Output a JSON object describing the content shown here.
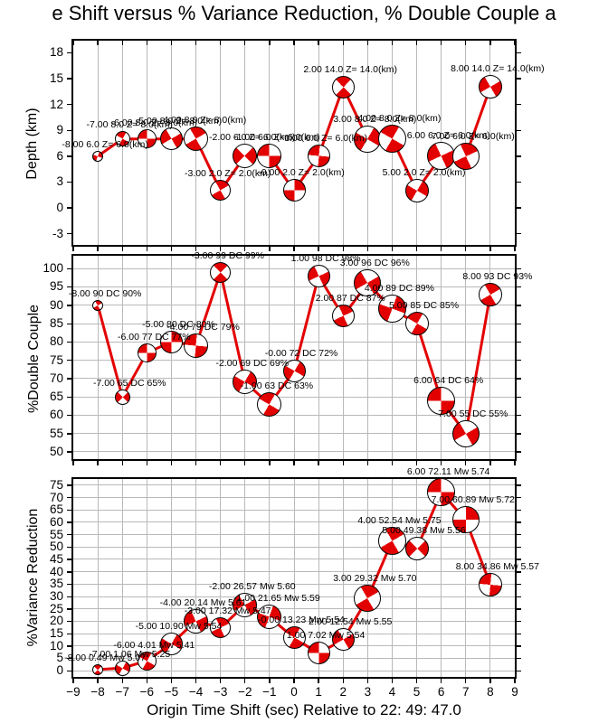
{
  "title": "e Shift versus % Variance Reduction, % Double Couple a",
  "x_axis": {
    "label": "Origin Time Shift (sec) Relative to 22: 49: 47.0",
    "ticks": [
      -9,
      -8,
      -7,
      -6,
      -5,
      -4,
      -3,
      -2,
      -1,
      0,
      1,
      2,
      3,
      4,
      5,
      6,
      7,
      8,
      9
    ]
  },
  "colors": {
    "line": "#e30000",
    "ball_fill": "#e30000",
    "ball_stroke": "#000000",
    "grid": "#b9b9b9",
    "axis": "#000000",
    "background": "#ffffff",
    "text": "#000000"
  },
  "chart_data": {
    "type": "line",
    "x": [
      -8,
      -7,
      -6,
      -5,
      -4,
      -3,
      -2,
      -1,
      0,
      1,
      2,
      3,
      4,
      5,
      6,
      7,
      8
    ],
    "mw": [
      5.07,
      5.25,
      5.41,
      5.54,
      5.61,
      5.47,
      5.6,
      5.59,
      5.54,
      5.54,
      5.55,
      5.7,
      5.75,
      5.56,
      5.74,
      5.72,
      5.57
    ],
    "xlim": [
      -9,
      9
    ],
    "subplots": [
      {
        "id": "depth",
        "ylabel": "Depth (km)",
        "ylim": [
          -4.3,
          19.4
        ],
        "yticks": [
          18,
          15,
          12,
          9,
          6,
          3,
          0,
          -3
        ],
        "horizontal_grid": false,
        "values": [
          6,
          8,
          8,
          8,
          8,
          2,
          6,
          6,
          2,
          6,
          14,
          8,
          8,
          2,
          6,
          6,
          14
        ],
        "point_labels": [
          "-8.00 6.0 Z= 6.0(km)",
          "-7.00 8.0 Z= 8.0(km)",
          "-6.00 8.0 Z= 8.0(km)",
          "-5.00 8.0 Z= 8.0(km)",
          "-4.00 8.0 Z= 8.0(km)",
          "-3.00 2.0 Z= 2.0(km)",
          "-2.00 6.0 Z= 6.0(km)",
          "-1.00 6.0 Z= 6.0(km)",
          "-0.00 2.0 Z= 2.0(km)",
          "1.00 6.0 Z= 6.0(km)",
          "2.00 14.0 Z= 14.0(km)",
          "3.00 8.0 Z= 8.0(km)",
          "4.00 8.0 Z= 8.0(km)",
          "5.00 2.0 Z= 2.0(km)",
          "6.00 6.0 Z= 6.0(km)",
          "7.00 6.0 Z= 6.0(km)",
          "8.00 14.0 Z= 14.0(km)"
        ]
      },
      {
        "id": "double-couple",
        "ylabel": "%Double Couple",
        "ylim": [
          48.0,
          103.5
        ],
        "yticks": [
          100,
          95,
          90,
          85,
          80,
          75,
          70,
          65,
          60,
          55,
          50
        ],
        "horizontal_grid": true,
        "values": [
          90,
          65,
          77,
          80,
          79,
          99,
          69,
          63,
          72,
          98,
          87,
          96,
          89,
          85,
          64,
          55,
          93
        ],
        "point_labels": [
          "-8.00 90 DC 90%",
          "-7.00 65 DC 65%",
          "-6.00 77 DC 77%",
          "-5.00 80 DC 80%",
          "-4.00 79 DC 79%",
          "-3.00 99 DC 99%",
          "-2.00 69 DC 69%",
          "-1.00 63 DC 63%",
          "-0.00 72 DC 72%",
          "1.00 98 DC 98%",
          "2.00 87 DC 87%",
          "3.00 96 DC 96%",
          "4.00 89 DC 89%",
          "5.00 85 DC 85%",
          "6.00 64 DC 64%",
          "7.00 55 DC 55%",
          "8.00 93 DC 93%"
        ]
      },
      {
        "id": "variance-reduction",
        "ylabel": "%Variance Reduction",
        "ylim": [
          -2.5,
          77.5
        ],
        "yticks": [
          75,
          70,
          65,
          60,
          55,
          50,
          45,
          40,
          35,
          30,
          25,
          20,
          15,
          10,
          5,
          0
        ],
        "horizontal_grid": true,
        "values": [
          0.49,
          1.06,
          4.01,
          10.9,
          20.14,
          17.32,
          26.57,
          21.65,
          13.23,
          7.02,
          12.54,
          29.32,
          52.54,
          49.38,
          72.11,
          60.89,
          34.86
        ],
        "point_labels": [
          "-8.00 0.49 Mw 5.07",
          "-7.00 1.06 Mw 5.25",
          "-6.00 4.01 Mw 5.41",
          "-5.00 10.90 Mw 5.54",
          "-4.00 20.14 Mw 5.61",
          "-3.00 17.32 Mw 5.47",
          "-2.00 26.57 Mw 5.60",
          "-1.00 21.65 Mw 5.59",
          "-0.00 13.23 Mw 5.54",
          "1.00 7.02 Mw 5.54",
          "2.00 12.54 Mw 5.55",
          "3.00 29.32 Mw 5.70",
          "4.00 52.54 Mw 5.75",
          "5.00 49.38 Mw 5.56",
          "6.00 72.11 Mw 5.74",
          "7.00 60.89 Mw 5.72",
          "8.00 34.86 Mw 5.57"
        ]
      }
    ]
  }
}
